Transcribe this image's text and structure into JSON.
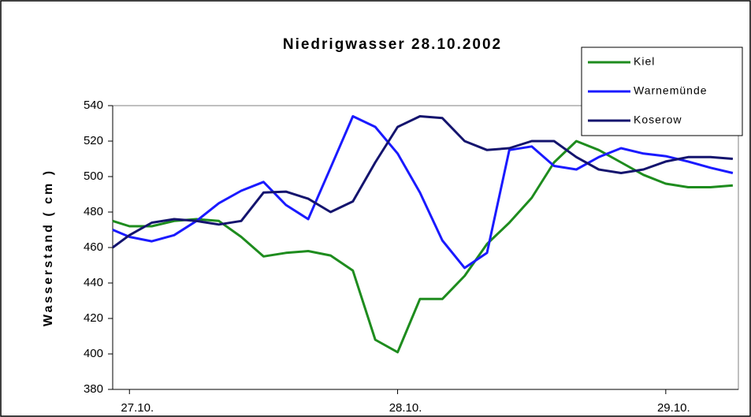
{
  "chart_data": {
    "type": "line",
    "title": "Niedrigwasser 28.10.2002",
    "y_label": "Wasserstand ( cm )",
    "x": [
      -1.5,
      0,
      2,
      4,
      6,
      8,
      10,
      12,
      14,
      16,
      18,
      20,
      22,
      24,
      26,
      28,
      30,
      32,
      34,
      36,
      38,
      40,
      42,
      44,
      46,
      48,
      50,
      52,
      54
    ],
    "xlim": [
      -1.5,
      54.5
    ],
    "xticks": [
      {
        "value": 0,
        "label": "27.10."
      },
      {
        "value": 24,
        "label": "28.10."
      },
      {
        "value": 48,
        "label": "29.10."
      }
    ],
    "ylim": [
      380,
      540
    ],
    "yticks": [
      380,
      400,
      420,
      440,
      460,
      480,
      500,
      520,
      540
    ],
    "grid": false,
    "legend": "upper right",
    "series": [
      {
        "name": "Kiel",
        "color": "#1e8c1e",
        "values": [
          475,
          472,
          472,
          475,
          476,
          475,
          466,
          455,
          457,
          458,
          455.5,
          447,
          408,
          401,
          431,
          431,
          444,
          462,
          474,
          488,
          508,
          520,
          515,
          508,
          501,
          496,
          494,
          494,
          495
        ]
      },
      {
        "name": "Warnemünde",
        "color": "#1a1aff",
        "values": [
          470,
          466,
          463.5,
          467,
          475,
          485,
          492,
          497,
          484,
          476,
          505,
          534,
          528,
          513,
          491,
          464,
          448.5,
          457,
          515,
          517,
          506,
          504,
          511,
          516,
          513,
          511.5,
          508.5,
          505,
          502
        ]
      },
      {
        "name": "Koserow",
        "color": "#14146e",
        "values": [
          460,
          467,
          474,
          476,
          475,
          473,
          475,
          491,
          491.5,
          487.5,
          480,
          486,
          508,
          528,
          534,
          533,
          520,
          515,
          516,
          520,
          520,
          511,
          504,
          502,
          504,
          508.5,
          511,
          511,
          510
        ]
      }
    ]
  }
}
